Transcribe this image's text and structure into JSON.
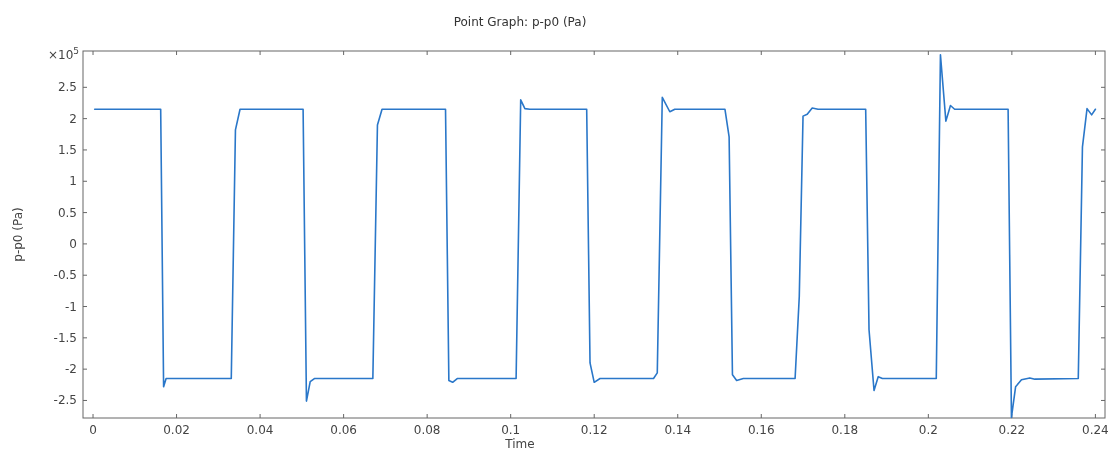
{
  "chart_data": {
    "type": "line",
    "title": "Point Graph: p-p0 (Pa)",
    "xlabel": "Time",
    "ylabel": "p-p0 (Pa)",
    "annotations": [
      "×10$^{5}$"
    ],
    "xlim": [
      -0.0024,
      0.2423
    ],
    "ylim": [
      -2.78,
      3.08
    ],
    "xticks": [
      0,
      0.02,
      0.04,
      0.06,
      0.08,
      0.1,
      0.12,
      0.14,
      0.16,
      0.18,
      0.2,
      0.22,
      0.24
    ],
    "yticks": [
      -2.5,
      -2,
      -1.5,
      -1,
      -0.5,
      0,
      0.5,
      1,
      1.5,
      2,
      2.5
    ],
    "grid": false,
    "marker": "none",
    "line_style": "solid",
    "series": [
      {
        "color": "#2a77c9",
        "x": [
          0.0004,
          0.0162,
          0.0169,
          0.0175,
          0.0331,
          0.0341,
          0.0352,
          0.0503,
          0.0511,
          0.052,
          0.053,
          0.067,
          0.0681,
          0.0692,
          0.0844,
          0.0852,
          0.0861,
          0.0872,
          0.1013,
          0.1024,
          0.1034,
          0.1046,
          0.1182,
          0.119,
          0.12,
          0.1214,
          0.1342,
          0.1351,
          0.1363,
          0.1381,
          0.1393,
          0.1513,
          0.1523,
          0.1531,
          0.1541,
          0.1557,
          0.1681,
          0.1691,
          0.17,
          0.171,
          0.1722,
          0.1736,
          0.185,
          0.1858,
          0.187,
          0.188,
          0.189,
          0.2019,
          0.2029,
          0.2042,
          0.2053,
          0.2063,
          0.2191,
          0.2199,
          0.2209,
          0.2223,
          0.2243,
          0.2255,
          0.2359,
          0.2369,
          0.238,
          0.2391,
          0.24
        ],
        "values": [
          2.15,
          2.15,
          -2.28,
          -2.15,
          -2.15,
          1.82,
          2.15,
          2.15,
          -2.51,
          -2.2,
          -2.15,
          -2.15,
          1.9,
          2.15,
          2.15,
          -2.18,
          -2.21,
          -2.15,
          -2.15,
          2.3,
          2.16,
          2.15,
          2.15,
          -1.9,
          -2.21,
          -2.15,
          -2.15,
          -2.06,
          2.34,
          2.11,
          2.15,
          2.15,
          1.71,
          -2.09,
          -2.18,
          -2.15,
          -2.15,
          -0.84,
          2.04,
          2.07,
          2.17,
          2.15,
          2.15,
          -1.37,
          -2.34,
          -2.12,
          -2.15,
          -2.15,
          3.02,
          1.96,
          2.21,
          2.15,
          2.15,
          -2.77,
          -2.28,
          -2.17,
          -2.14,
          -2.16,
          -2.15,
          1.55,
          2.16,
          2.06,
          2.15
        ]
      }
    ]
  }
}
